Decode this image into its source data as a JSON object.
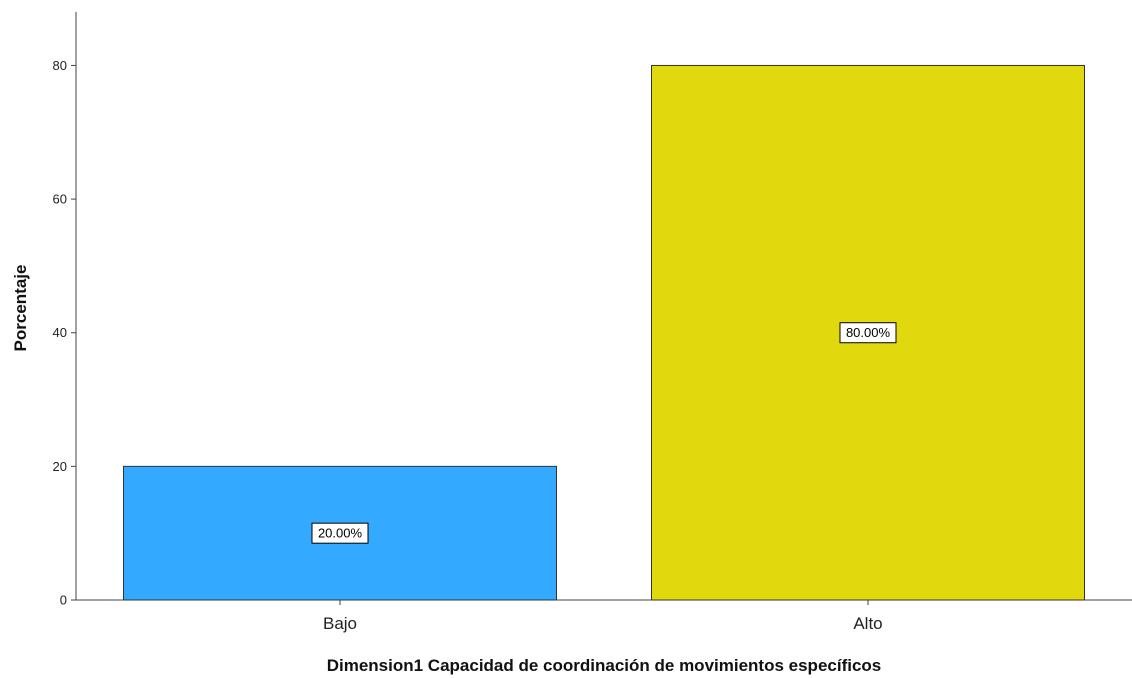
{
  "chart_data": {
    "type": "bar",
    "categories": [
      "Bajo",
      "Alto"
    ],
    "values": [
      20,
      80
    ],
    "data_labels": [
      "20.00%",
      "80.00%"
    ],
    "title": "",
    "xlabel": "Dimension1 Capacidad de coordinación de movimientos específicos",
    "ylabel": "Porcentaje",
    "ylim": [
      0,
      88
    ],
    "yticks": [
      0,
      20,
      40,
      60,
      80
    ],
    "grid": false,
    "legend": "none",
    "colors": [
      "#33aaff",
      "#e2d80e"
    ]
  }
}
